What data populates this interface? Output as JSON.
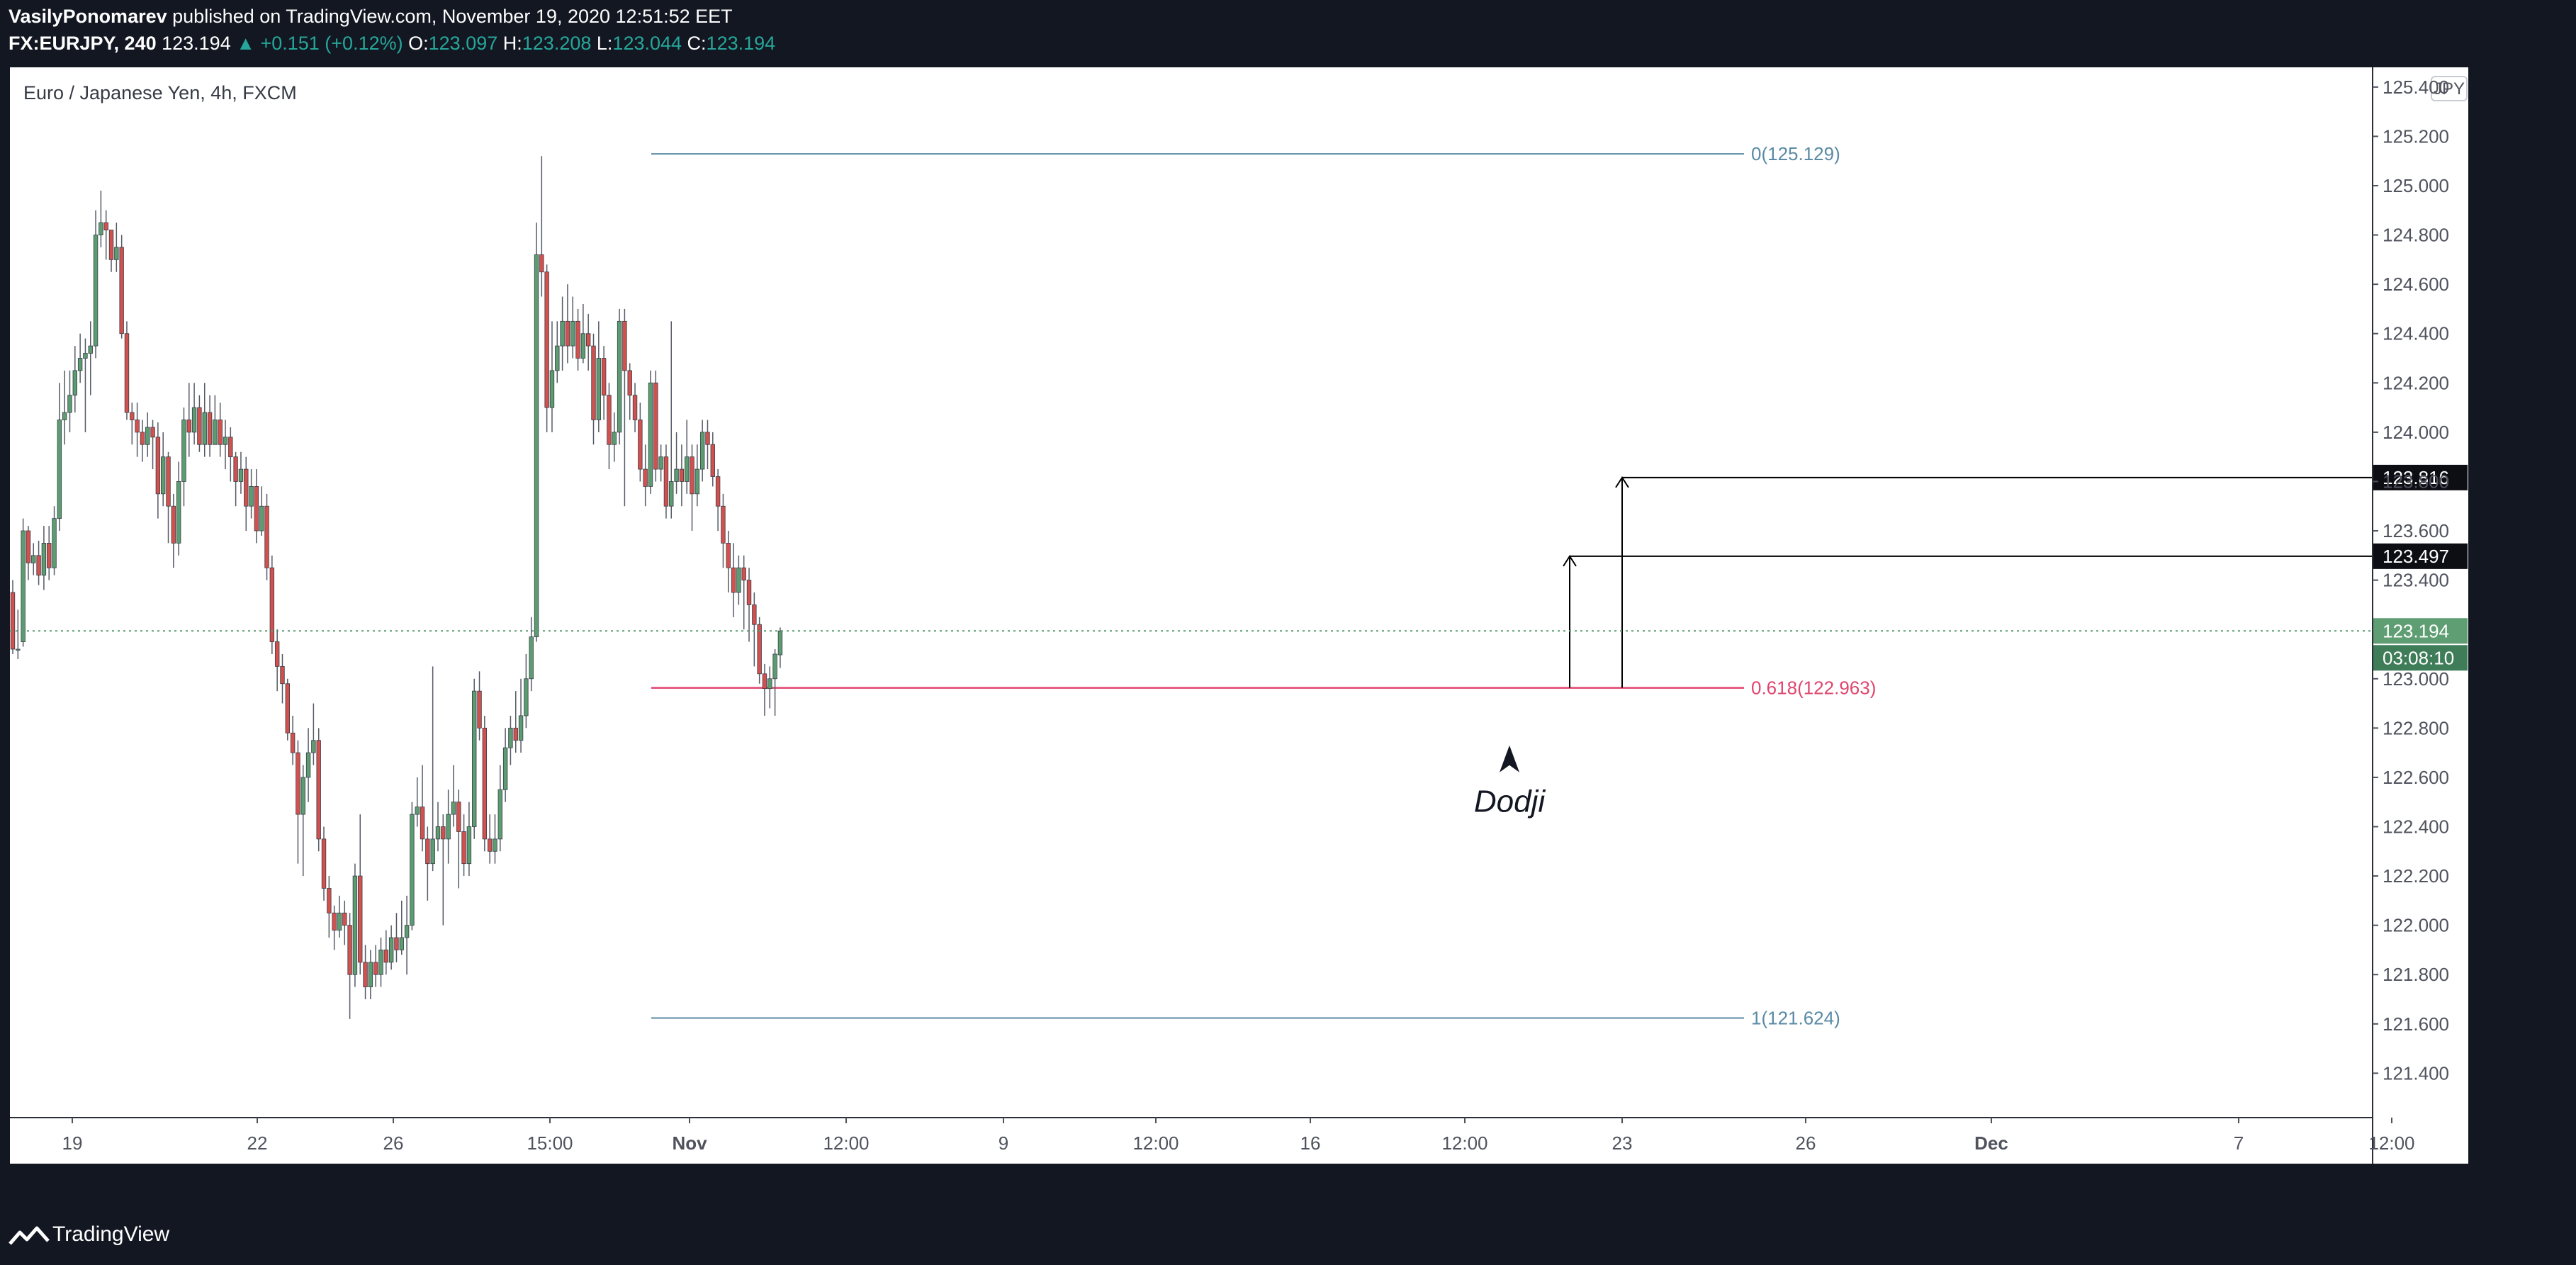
{
  "header": {
    "author": "VasilyPonomarev",
    "published": "published on TradingView.com, November 19, 2020 12:51:52 EET",
    "symbol": "FX:EURJPY, 240",
    "price": "123.194",
    "change": "▲ +0.151 (+0.12%)",
    "o_label": "O:",
    "o_value": "123.097",
    "h_label": "H:",
    "h_value": "123.208",
    "l_label": "L:",
    "l_value": "123.044",
    "c_label": "C:",
    "c_value": "123.194"
  },
  "footer": {
    "brand": "TradingView"
  },
  "colors": {
    "up": "#5b9c71",
    "down": "#d2514e",
    "fib": "#5a8aa5",
    "fib_618": "#e0456d",
    "axis_text": "#50535e",
    "last_price_bg": "#5f9e73",
    "dark_label_bg": "#0c0e14"
  },
  "chart_data": {
    "type": "candlestick",
    "title": "Euro / Japanese Yen, 4h, FXCM",
    "currency": "JPY",
    "ylim": [
      121.22,
      125.48
    ],
    "y_ticks": [
      "121.400",
      "121.600",
      "121.800",
      "122.000",
      "122.200",
      "122.400",
      "122.600",
      "122.800",
      "123.000",
      "123.200",
      "123.400",
      "123.600",
      "123.800",
      "124.000",
      "124.200",
      "124.400",
      "124.600",
      "124.800",
      "125.000",
      "125.200",
      "125.400"
    ],
    "x_ticks": [
      "19",
      "22",
      "26",
      "15:00",
      "Nov",
      "12:00",
      "9",
      "12:00",
      "16",
      "12:00",
      "23",
      "26",
      "Dec",
      "7",
      "12:00"
    ],
    "last_price": "123.194",
    "countdown": "03:08:10",
    "price_labels": [
      "123.816",
      "123.497"
    ],
    "fib_levels": [
      {
        "label": "0(125.129)",
        "price": 125.129
      },
      {
        "label": "0.618(122.963)",
        "price": 122.963
      },
      {
        "label": "1(121.624)",
        "price": 121.624
      }
    ],
    "annotation": "Dodji",
    "target_lines": [
      123.816,
      123.497
    ],
    "candles": [
      [
        123.35,
        123.12,
        123.4,
        123.1
      ],
      [
        123.12,
        123.12,
        123.28,
        123.08
      ],
      [
        123.15,
        123.6,
        123.65,
        123.13
      ],
      [
        123.6,
        123.47,
        123.62,
        123.4
      ],
      [
        123.47,
        123.5,
        123.55,
        123.42
      ],
      [
        123.5,
        123.42,
        123.56,
        123.38
      ],
      [
        123.42,
        123.55,
        123.62,
        123.36
      ],
      [
        123.55,
        123.45,
        123.62,
        123.4
      ],
      [
        123.45,
        123.65,
        123.7,
        123.42
      ],
      [
        123.65,
        124.05,
        124.2,
        123.6
      ],
      [
        124.05,
        124.08,
        124.25,
        123.95
      ],
      [
        124.08,
        124.15,
        124.25,
        124.0
      ],
      [
        124.15,
        124.25,
        124.35,
        124.08
      ],
      [
        124.25,
        124.3,
        124.4,
        124.2
      ],
      [
        124.3,
        124.32,
        124.38,
        124.0
      ],
      [
        124.32,
        124.35,
        124.45,
        124.15
      ],
      [
        124.35,
        124.8,
        124.9,
        124.3
      ],
      [
        124.8,
        124.85,
        124.98,
        124.75
      ],
      [
        124.85,
        124.82,
        124.9,
        124.7
      ],
      [
        124.82,
        124.7,
        124.8,
        124.65
      ],
      [
        124.7,
        124.75,
        124.85,
        124.65
      ],
      [
        124.75,
        124.4,
        124.8,
        124.38
      ],
      [
        124.4,
        124.08,
        124.45,
        124.05
      ],
      [
        124.08,
        124.05,
        124.12,
        123.95
      ],
      [
        124.05,
        124.0,
        124.12,
        123.9
      ],
      [
        124.0,
        123.95,
        124.05,
        123.88
      ],
      [
        123.95,
        124.02,
        124.08,
        123.9
      ],
      [
        124.02,
        123.98,
        124.05,
        123.85
      ],
      [
        123.98,
        123.75,
        124.04,
        123.65
      ],
      [
        123.75,
        123.9,
        124.0,
        123.7
      ],
      [
        123.9,
        123.7,
        123.92,
        123.55
      ],
      [
        123.7,
        123.55,
        123.75,
        123.45
      ],
      [
        123.55,
        123.8,
        123.88,
        123.5
      ],
      [
        123.8,
        124.05,
        124.1,
        123.7
      ],
      [
        124.05,
        124.0,
        124.2,
        123.9
      ],
      [
        124.0,
        124.1,
        124.2,
        123.95
      ],
      [
        124.1,
        123.95,
        124.15,
        123.92
      ],
      [
        123.95,
        124.08,
        124.2,
        123.9
      ],
      [
        124.08,
        123.95,
        124.15,
        123.9
      ],
      [
        123.95,
        124.05,
        124.15,
        123.95
      ],
      [
        124.05,
        123.95,
        124.12,
        123.9
      ],
      [
        123.95,
        123.98,
        124.05,
        123.85
      ],
      [
        123.98,
        123.9,
        124.02,
        123.8
      ],
      [
        123.9,
        123.8,
        123.92,
        123.7
      ],
      [
        123.8,
        123.85,
        123.92,
        123.75
      ],
      [
        123.85,
        123.7,
        123.9,
        123.6
      ],
      [
        123.7,
        123.78,
        123.85,
        123.65
      ],
      [
        123.78,
        123.6,
        123.85,
        123.55
      ],
      [
        123.6,
        123.7,
        123.78,
        123.58
      ],
      [
        123.7,
        123.45,
        123.75,
        123.4
      ],
      [
        123.45,
        123.15,
        123.5,
        123.1
      ],
      [
        123.15,
        123.05,
        123.2,
        122.95
      ],
      [
        123.05,
        122.98,
        123.1,
        122.9
      ],
      [
        122.98,
        122.78,
        123.0,
        122.75
      ],
      [
        122.78,
        122.7,
        122.85,
        122.65
      ],
      [
        122.7,
        122.45,
        122.75,
        122.25
      ],
      [
        122.45,
        122.6,
        122.65,
        122.2
      ],
      [
        122.6,
        122.7,
        122.8,
        122.5
      ],
      [
        122.7,
        122.75,
        122.9,
        122.65
      ],
      [
        122.75,
        122.35,
        122.8,
        122.3
      ],
      [
        122.35,
        122.15,
        122.4,
        122.1
      ],
      [
        122.15,
        122.05,
        122.2,
        121.95
      ],
      [
        122.05,
        121.98,
        122.08,
        121.9
      ],
      [
        121.98,
        122.05,
        122.12,
        121.95
      ],
      [
        122.05,
        122.0,
        122.1,
        121.92
      ],
      [
        122.0,
        121.8,
        122.05,
        121.62
      ],
      [
        121.8,
        122.2,
        122.25,
        121.75
      ],
      [
        122.2,
        121.85,
        122.45,
        121.8
      ],
      [
        121.85,
        121.75,
        121.92,
        121.7
      ],
      [
        121.75,
        121.85,
        121.9,
        121.7
      ],
      [
        121.85,
        121.8,
        121.92,
        121.75
      ],
      [
        121.8,
        121.9,
        121.95,
        121.75
      ],
      [
        121.9,
        121.85,
        121.98,
        121.8
      ],
      [
        121.85,
        121.95,
        122.0,
        121.82
      ],
      [
        121.95,
        121.9,
        122.05,
        121.85
      ],
      [
        121.9,
        121.95,
        122.1,
        121.88
      ],
      [
        121.95,
        122.0,
        122.12,
        121.8
      ],
      [
        122.0,
        122.45,
        122.5,
        121.98
      ],
      [
        122.45,
        122.48,
        122.6,
        122.4
      ],
      [
        122.48,
        122.35,
        122.65,
        122.3
      ],
      [
        122.35,
        122.25,
        122.4,
        122.1
      ],
      [
        122.25,
        122.35,
        123.05,
        122.22
      ],
      [
        122.35,
        122.4,
        122.5,
        122.3
      ],
      [
        122.4,
        122.35,
        122.45,
        122.0
      ],
      [
        122.35,
        122.45,
        122.55,
        122.25
      ],
      [
        122.45,
        122.5,
        122.65,
        122.4
      ],
      [
        122.5,
        122.38,
        122.55,
        122.15
      ],
      [
        122.38,
        122.25,
        122.45,
        122.2
      ],
      [
        122.25,
        122.4,
        122.5,
        122.2
      ],
      [
        122.4,
        122.95,
        123.0,
        122.35
      ],
      [
        122.95,
        122.8,
        123.03,
        122.75
      ],
      [
        122.8,
        122.35,
        122.85,
        122.3
      ],
      [
        122.35,
        122.3,
        122.45,
        122.25
      ],
      [
        122.3,
        122.35,
        122.45,
        122.25
      ],
      [
        122.35,
        122.55,
        122.65,
        122.3
      ],
      [
        122.55,
        122.72,
        122.8,
        122.5
      ],
      [
        122.72,
        122.8,
        122.85,
        122.65
      ],
      [
        122.8,
        122.75,
        122.95,
        122.7
      ],
      [
        122.75,
        122.85,
        123.0,
        122.7
      ],
      [
        122.85,
        123.0,
        123.1,
        122.8
      ],
      [
        123.0,
        123.17,
        123.25,
        122.95
      ],
      [
        123.17,
        124.72,
        124.85,
        123.15
      ],
      [
        124.72,
        124.65,
        125.12,
        124.55
      ],
      [
        124.65,
        124.1,
        124.68,
        124.0
      ],
      [
        124.1,
        124.25,
        124.45,
        124.0
      ],
      [
        124.25,
        124.35,
        124.45,
        124.2
      ],
      [
        124.35,
        124.45,
        124.55,
        124.25
      ],
      [
        124.45,
        124.35,
        124.6,
        124.28
      ],
      [
        124.35,
        124.45,
        124.55,
        124.3
      ],
      [
        124.45,
        124.3,
        124.5,
        124.25
      ],
      [
        124.3,
        124.4,
        124.52,
        124.28
      ],
      [
        124.4,
        124.35,
        124.48,
        124.25
      ],
      [
        124.35,
        124.05,
        124.4,
        123.95
      ],
      [
        124.05,
        124.3,
        124.45,
        124.0
      ],
      [
        124.3,
        124.15,
        124.35,
        124.05
      ],
      [
        124.15,
        123.95,
        124.2,
        123.85
      ],
      [
        123.95,
        124.0,
        124.08,
        123.88
      ],
      [
        124.0,
        124.45,
        124.5,
        123.95
      ],
      [
        124.45,
        124.25,
        124.5,
        123.7
      ],
      [
        124.25,
        124.15,
        124.28,
        124.05
      ],
      [
        124.15,
        124.05,
        124.2,
        124.0
      ],
      [
        124.05,
        123.85,
        124.12,
        123.8
      ],
      [
        123.85,
        123.78,
        123.95,
        123.7
      ],
      [
        123.78,
        124.2,
        124.25,
        123.75
      ],
      [
        124.2,
        123.85,
        124.25,
        123.8
      ],
      [
        123.85,
        123.9,
        123.95,
        123.8
      ],
      [
        123.9,
        123.7,
        123.95,
        123.65
      ],
      [
        123.7,
        123.8,
        124.45,
        123.65
      ],
      [
        123.8,
        123.85,
        124.0,
        123.75
      ],
      [
        123.85,
        123.8,
        123.95,
        123.7
      ],
      [
        123.8,
        123.9,
        124.05,
        123.75
      ],
      [
        123.9,
        123.75,
        123.95,
        123.6
      ],
      [
        123.75,
        123.85,
        123.95,
        123.7
      ],
      [
        123.85,
        124.0,
        124.05,
        123.8
      ],
      [
        124.0,
        123.95,
        124.05,
        123.85
      ],
      [
        123.95,
        123.82,
        124.0,
        123.78
      ],
      [
        123.82,
        123.7,
        123.85,
        123.6
      ],
      [
        123.7,
        123.55,
        123.75,
        123.45
      ],
      [
        123.55,
        123.45,
        123.6,
        123.35
      ],
      [
        123.45,
        123.35,
        123.55,
        123.25
      ],
      [
        123.35,
        123.45,
        123.5,
        123.3
      ],
      [
        123.45,
        123.4,
        123.5,
        123.2
      ],
      [
        123.4,
        123.3,
        123.45,
        123.15
      ],
      [
        123.3,
        123.22,
        123.35,
        123.05
      ],
      [
        123.22,
        123.02,
        123.25,
        122.98
      ],
      [
        123.02,
        122.96,
        123.06,
        122.85
      ],
      [
        122.96,
        123.0,
        123.05,
        122.88
      ],
      [
        123.0,
        123.1,
        123.12,
        122.85
      ],
      [
        123.097,
        123.194,
        123.208,
        123.044
      ]
    ]
  }
}
